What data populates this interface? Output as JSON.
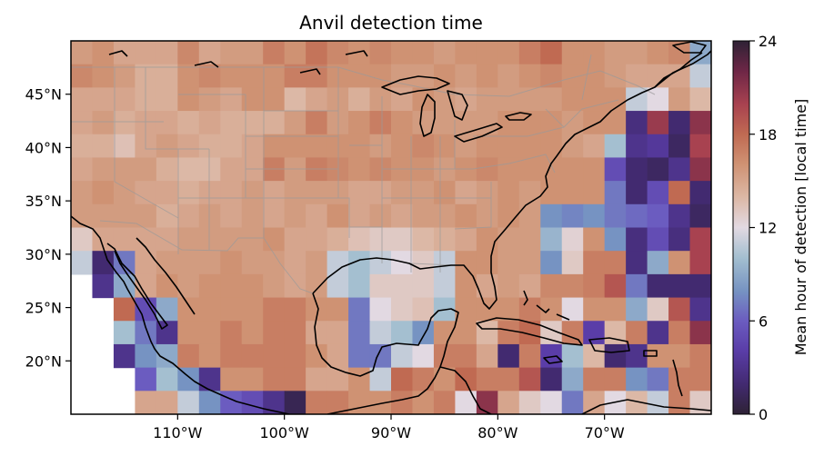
{
  "title": "Anvil detection time",
  "colorbar": {
    "label": "Mean hour of detection [local time]",
    "min": 0,
    "max": 24,
    "ticks": [
      "0",
      "6",
      "12",
      "18",
      "24"
    ],
    "colormap": "twilight_shifted"
  },
  "map": {
    "projection": "PlateCarree",
    "lon_range": [
      -120,
      -60
    ],
    "lat_range": [
      15,
      50
    ],
    "cell_size_deg": 2,
    "x_ticks": [
      {
        "lon": -110,
        "label": "110°W"
      },
      {
        "lon": -100,
        "label": "100°W"
      },
      {
        "lon": -90,
        "label": "90°W"
      },
      {
        "lon": -80,
        "label": "80°W"
      },
      {
        "lon": -70,
        "label": "70°W"
      }
    ],
    "y_ticks": [
      {
        "lat": 20,
        "label": "20°N"
      },
      {
        "lat": 25,
        "label": "25°N"
      },
      {
        "lat": 30,
        "label": "30°N"
      },
      {
        "lat": 35,
        "label": "35°N"
      },
      {
        "lat": 40,
        "label": "40°N"
      },
      {
        "lat": 45,
        "label": "45°N"
      }
    ],
    "coastline_color": "#000000",
    "border_color": "#9a9a9a"
  },
  "chart_data": {
    "type": "heatmap",
    "title": "Anvil detection time",
    "xlabel": "",
    "ylabel": "",
    "colorbar_label": "Mean hour of detection [local time]",
    "value_range": [
      0,
      24
    ],
    "grid": [
      [
        15.5,
        16,
        15,
        15,
        15,
        16.5,
        15,
        15.5,
        15.5,
        17,
        16,
        17.5,
        16.5,
        16,
        16.5,
        16,
        16,
        15.5,
        16,
        16,
        16,
        17,
        18,
        16,
        16,
        15.5,
        15.5,
        16,
        16.5,
        9
      ],
      [
        16.5,
        16,
        15.5,
        14.5,
        14.5,
        16,
        16.5,
        16,
        16,
        16,
        17,
        17,
        16,
        16,
        16,
        15.5,
        15.5,
        16,
        15.5,
        16,
        15.5,
        16,
        16.5,
        16,
        16,
        15.5,
        15,
        15,
        15,
        11
      ],
      [
        15,
        15,
        15,
        14.5,
        14.5,
        16,
        15.5,
        15,
        16,
        16,
        14,
        15,
        15.5,
        14.5,
        15.5,
        15,
        16,
        15.5,
        15,
        15.5,
        15.5,
        15.5,
        15.5,
        16,
        16,
        16,
        11,
        12,
        15.5,
        14
      ],
      [
        15,
        15.5,
        14.5,
        15,
        15,
        14.5,
        15,
        14.5,
        14.5,
        14.5,
        15.5,
        17,
        15.5,
        16,
        17,
        16,
        15.5,
        15.5,
        15.5,
        15.5,
        16,
        16,
        16,
        15.5,
        16,
        16,
        2.5,
        20.5,
        2,
        21
      ],
      [
        14.5,
        14.5,
        13.5,
        15,
        15.5,
        15,
        14.5,
        14.5,
        15,
        16,
        16,
        16,
        16,
        16,
        15.5,
        16,
        16.5,
        16,
        15.5,
        16,
        16,
        16,
        16,
        15.5,
        15,
        10,
        3,
        3.5,
        1.5,
        20
      ],
      [
        15,
        15.5,
        15.5,
        15.5,
        14.5,
        14,
        14,
        15,
        15,
        17,
        15.5,
        17,
        16.5,
        16,
        16.5,
        16,
        16,
        15.5,
        16,
        16.5,
        16,
        16,
        16,
        16,
        16,
        5,
        2,
        1.5,
        3,
        21
      ],
      [
        15.5,
        16,
        15.5,
        15,
        15,
        14.5,
        15,
        15,
        15.5,
        15,
        15.5,
        15.5,
        15.5,
        15,
        15,
        15.5,
        15.5,
        16,
        15,
        15.5,
        16,
        15.5,
        16,
        16,
        16,
        7,
        2,
        5,
        18,
        2
      ],
      [
        15.5,
        15.5,
        15.5,
        15.5,
        14.5,
        15,
        15.5,
        15,
        15.5,
        15,
        15.5,
        15,
        16,
        15,
        15.5,
        15,
        15.5,
        15.5,
        16,
        15.5,
        16,
        15.5,
        8,
        7.5,
        8,
        7,
        6.5,
        6,
        3,
        1.5
      ],
      [
        13,
        15,
        15,
        15,
        15,
        15.5,
        15.5,
        15.5,
        15.5,
        16,
        15,
        15,
        14.5,
        13.5,
        13,
        13,
        14,
        14.5,
        15,
        16,
        15.5,
        15.5,
        9.5,
        12.5,
        16,
        8,
        2.5,
        5,
        2.5,
        20
      ],
      [
        11,
        2,
        7,
        15,
        15.5,
        15.5,
        15.5,
        16,
        15.5,
        15.5,
        15,
        15.5,
        11,
        10,
        11,
        12,
        13,
        11,
        16,
        16,
        15.5,
        15.5,
        8,
        13,
        17,
        17,
        2.5,
        9,
        16,
        20
      ],
      [
        null,
        3,
        9,
        15,
        16,
        15.5,
        16,
        16,
        16,
        15.5,
        15,
        15.5,
        11,
        10,
        13,
        13,
        13,
        11,
        16,
        15,
        15.5,
        15,
        16.5,
        16.5,
        17,
        19,
        7,
        2,
        2,
        2
      ],
      [
        null,
        null,
        18,
        5,
        9,
        16,
        16,
        16,
        16,
        17,
        17,
        16,
        16,
        7,
        12,
        13,
        13.5,
        10,
        16,
        16,
        16,
        17,
        16,
        12,
        16,
        16,
        9,
        13,
        19,
        3
      ],
      [
        null,
        null,
        10,
        7,
        3,
        16,
        16,
        17,
        16,
        17,
        17,
        15,
        15,
        7,
        11,
        10,
        8,
        16,
        16,
        14,
        17,
        18,
        13,
        17,
        4,
        14,
        17,
        3,
        17,
        21
      ],
      [
        null,
        null,
        3,
        8,
        9,
        17,
        16,
        17,
        17,
        17,
        17,
        16,
        15,
        7,
        7,
        11,
        12,
        17,
        17,
        15,
        2,
        17,
        4,
        10,
        14,
        2,
        3,
        16,
        16,
        17
      ],
      [
        null,
        null,
        null,
        6,
        10,
        8,
        3,
        16,
        16,
        17,
        17,
        15,
        15,
        16,
        11,
        18,
        17,
        16,
        18,
        17,
        17,
        19,
        2,
        9,
        17,
        17,
        8,
        7,
        17,
        17
      ],
      [
        null,
        null,
        null,
        15,
        15,
        11,
        8,
        6,
        5,
        3,
        1,
        17,
        17,
        16,
        16,
        17,
        16,
        17,
        12,
        21,
        15,
        13,
        12,
        7,
        15,
        12,
        14,
        11,
        17,
        13
      ]
    ]
  }
}
